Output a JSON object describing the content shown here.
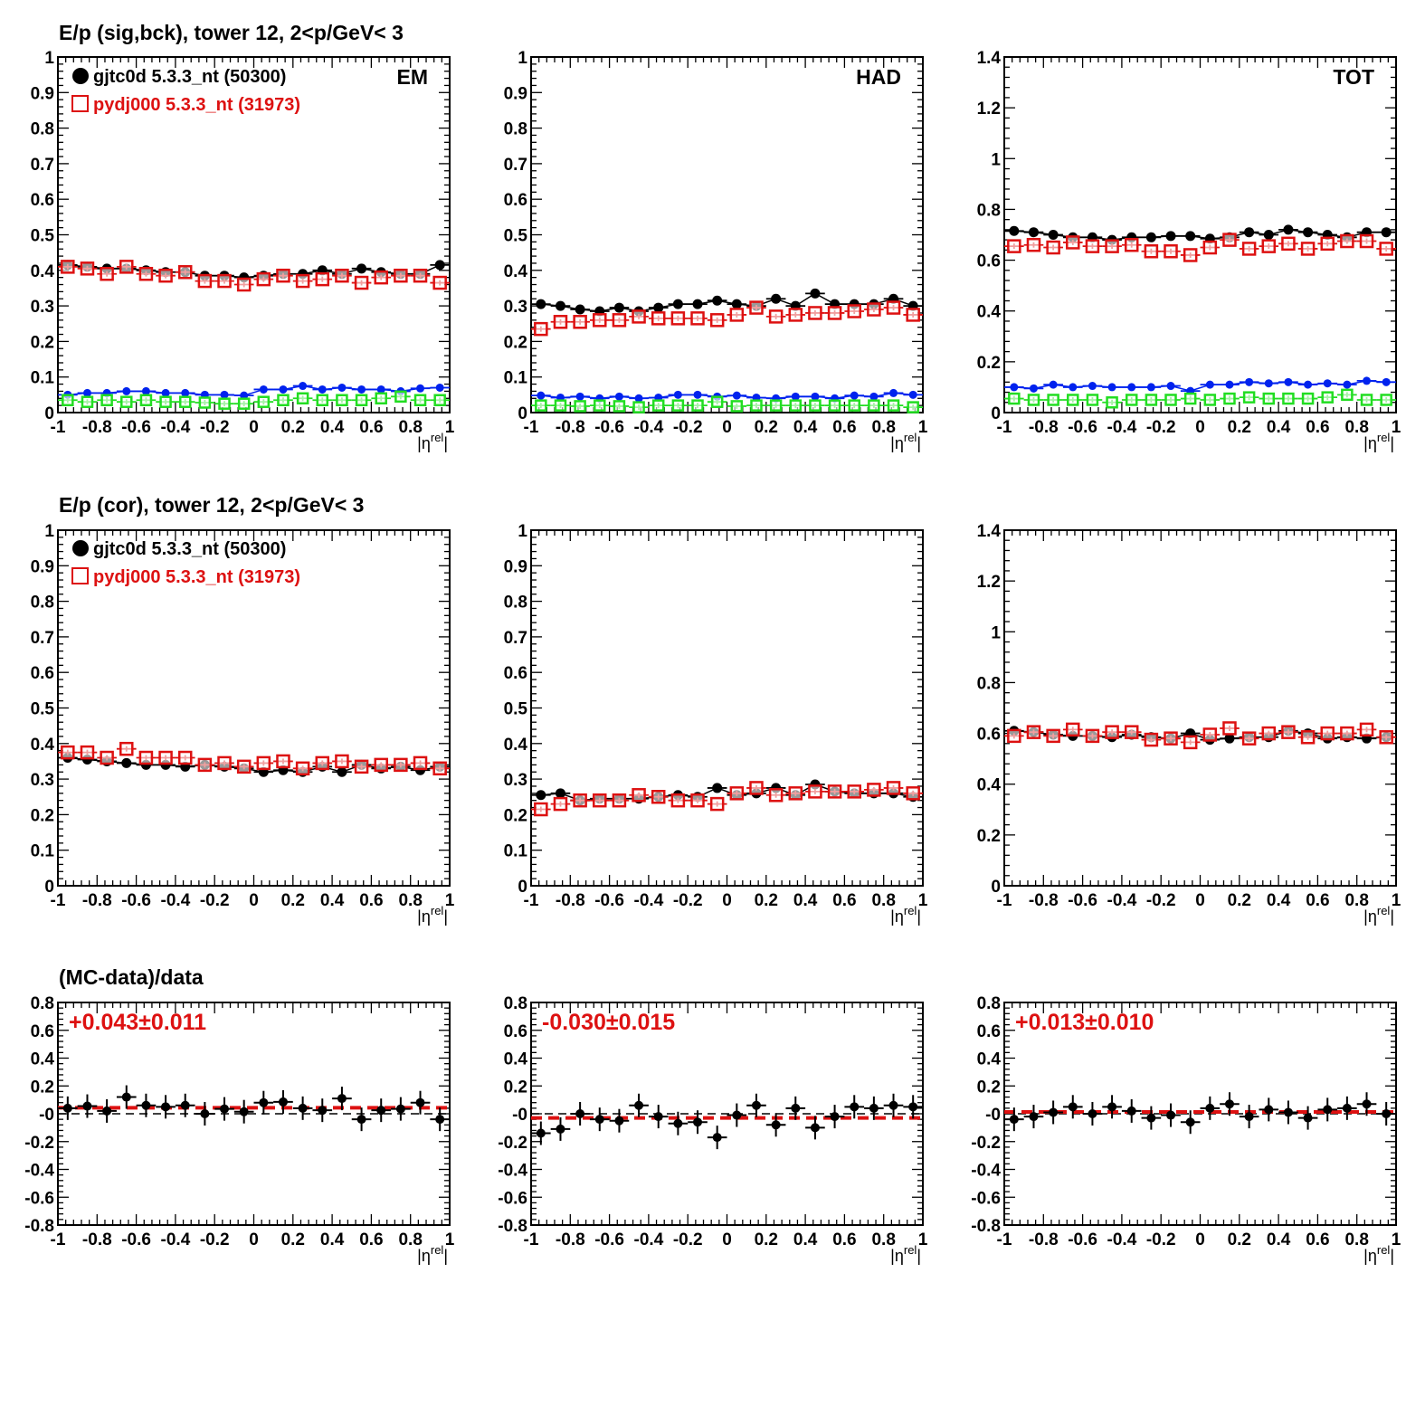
{
  "colors": {
    "data": "#000000",
    "mc": "#dd1111",
    "sig_bck_blue": "#0022ee",
    "sig_bck_green": "#22dd22",
    "fit_line": "#dd1111",
    "zero_line": "#000000"
  },
  "row_titles": [
    "E/p (sig,bck), tower 12,  2<p/GeV< 3",
    "E/p (cor), tower 12,  2<p/GeV< 3",
    "(MC-data)/data"
  ],
  "legend": {
    "data_label": "gjtc0d 5.3.3_nt (50300)",
    "mc_label": "pydj000 5.3.3_nt (31973)"
  },
  "chart_data": [
    {
      "type": "scatter",
      "row": 0,
      "col": 0,
      "panel_label": "EM",
      "xlabel": "|η^rel|",
      "xlim": [
        -1,
        1
      ],
      "ylim": [
        0,
        1
      ],
      "x_ticks": [
        "-1",
        "-0.8",
        "-0.6",
        "-0.4",
        "-0.2",
        "0",
        "0.2",
        "0.4",
        "0.6",
        "0.8",
        "1"
      ],
      "y_ticks": [
        "0",
        "0.1",
        "0.2",
        "0.3",
        "0.4",
        "0.5",
        "0.6",
        "0.7",
        "0.8",
        "0.9",
        "1"
      ],
      "x": [
        -0.95,
        -0.85,
        -0.75,
        -0.65,
        -0.55,
        -0.45,
        -0.35,
        -0.25,
        -0.15,
        -0.05,
        0.05,
        0.15,
        0.25,
        0.35,
        0.45,
        0.55,
        0.65,
        0.75,
        0.85,
        0.95
      ],
      "series": [
        {
          "name": "gjtc0d 5.3.3_nt (50300)",
          "values": [
            0.415,
            0.41,
            0.405,
            0.405,
            0.4,
            0.395,
            0.395,
            0.385,
            0.385,
            0.38,
            0.385,
            0.39,
            0.39,
            0.4,
            0.39,
            0.405,
            0.395,
            0.39,
            0.39,
            0.415
          ]
        },
        {
          "name": "pydj000 5.3.3_nt (31973)",
          "values": [
            0.41,
            0.405,
            0.39,
            0.41,
            0.39,
            0.385,
            0.395,
            0.37,
            0.37,
            0.36,
            0.375,
            0.385,
            0.37,
            0.375,
            0.385,
            0.365,
            0.38,
            0.385,
            0.385,
            0.365
          ]
        },
        {
          "name": "",
          "values": [
            0.05,
            0.055,
            0.055,
            0.06,
            0.06,
            0.055,
            0.055,
            0.05,
            0.05,
            0.048,
            0.065,
            0.065,
            0.075,
            0.065,
            0.07,
            0.065,
            0.065,
            0.06,
            0.068,
            0.07
          ]
        },
        {
          "name": "",
          "values": [
            0.035,
            0.03,
            0.035,
            0.03,
            0.035,
            0.03,
            0.03,
            0.028,
            0.025,
            0.025,
            0.03,
            0.035,
            0.04,
            0.035,
            0.035,
            0.035,
            0.04,
            0.045,
            0.035,
            0.035
          ]
        }
      ]
    },
    {
      "type": "scatter",
      "row": 0,
      "col": 1,
      "panel_label": "HAD",
      "xlabel": "|η^rel|",
      "xlim": [
        -1,
        1
      ],
      "ylim": [
        0,
        1
      ],
      "x_ticks": [
        "-1",
        "-0.8",
        "-0.6",
        "-0.4",
        "-0.2",
        "0",
        "0.2",
        "0.4",
        "0.6",
        "0.8",
        "1"
      ],
      "y_ticks": [
        "0",
        "0.1",
        "0.2",
        "0.3",
        "0.4",
        "0.5",
        "0.6",
        "0.7",
        "0.8",
        "0.9",
        "1"
      ],
      "x": [
        -0.95,
        -0.85,
        -0.75,
        -0.65,
        -0.55,
        -0.45,
        -0.35,
        -0.25,
        -0.15,
        -0.05,
        0.05,
        0.15,
        0.25,
        0.35,
        0.45,
        0.55,
        0.65,
        0.75,
        0.85,
        0.95
      ],
      "series": [
        {
          "name": "gjtc0d 5.3.3_nt (50300)",
          "values": [
            0.305,
            0.3,
            0.29,
            0.285,
            0.295,
            0.285,
            0.295,
            0.305,
            0.305,
            0.315,
            0.305,
            0.3,
            0.32,
            0.3,
            0.335,
            0.305,
            0.305,
            0.305,
            0.32,
            0.3
          ]
        },
        {
          "name": "pydj000 5.3.3_nt (31973)",
          "values": [
            0.235,
            0.255,
            0.255,
            0.26,
            0.26,
            0.27,
            0.265,
            0.265,
            0.265,
            0.26,
            0.275,
            0.295,
            0.27,
            0.275,
            0.28,
            0.28,
            0.285,
            0.29,
            0.295,
            0.275
          ]
        },
        {
          "name": "",
          "values": [
            0.048,
            0.042,
            0.045,
            0.04,
            0.045,
            0.04,
            0.042,
            0.05,
            0.05,
            0.045,
            0.048,
            0.042,
            0.04,
            0.045,
            0.045,
            0.04,
            0.048,
            0.045,
            0.055,
            0.05
          ]
        },
        {
          "name": "",
          "values": [
            0.02,
            0.02,
            0.018,
            0.02,
            0.018,
            0.015,
            0.02,
            0.02,
            0.02,
            0.03,
            0.018,
            0.02,
            0.02,
            0.02,
            0.02,
            0.02,
            0.02,
            0.02,
            0.02,
            0.015
          ]
        }
      ]
    },
    {
      "type": "scatter",
      "row": 0,
      "col": 2,
      "panel_label": "TOT",
      "xlabel": "|η^rel|",
      "xlim": [
        -1,
        1
      ],
      "ylim": [
        0,
        1.4
      ],
      "x_ticks": [
        "-1",
        "-0.8",
        "-0.6",
        "-0.4",
        "-0.2",
        "0",
        "0.2",
        "0.4",
        "0.6",
        "0.8",
        "1"
      ],
      "y_ticks": [
        "0",
        "0.2",
        "0.4",
        "0.6",
        "0.8",
        "1",
        "1.2",
        "1.4"
      ],
      "x": [
        -0.95,
        -0.85,
        -0.75,
        -0.65,
        -0.55,
        -0.45,
        -0.35,
        -0.25,
        -0.15,
        -0.05,
        0.05,
        0.15,
        0.25,
        0.35,
        0.45,
        0.55,
        0.65,
        0.75,
        0.85,
        0.95
      ],
      "series": [
        {
          "name": "gjtc0d 5.3.3_nt (50300)",
          "values": [
            0.715,
            0.71,
            0.7,
            0.69,
            0.69,
            0.68,
            0.69,
            0.69,
            0.695,
            0.695,
            0.685,
            0.69,
            0.71,
            0.7,
            0.72,
            0.71,
            0.7,
            0.69,
            0.71,
            0.71
          ]
        },
        {
          "name": "pydj000 5.3.3_nt (31973)",
          "values": [
            0.655,
            0.66,
            0.65,
            0.67,
            0.655,
            0.655,
            0.66,
            0.635,
            0.635,
            0.62,
            0.65,
            0.68,
            0.645,
            0.655,
            0.665,
            0.645,
            0.665,
            0.675,
            0.675,
            0.645
          ]
        },
        {
          "name": "",
          "values": [
            0.1,
            0.095,
            0.11,
            0.1,
            0.105,
            0.1,
            0.1,
            0.1,
            0.105,
            0.085,
            0.11,
            0.11,
            0.12,
            0.115,
            0.12,
            0.11,
            0.115,
            0.11,
            0.125,
            0.12
          ]
        },
        {
          "name": "",
          "values": [
            0.055,
            0.05,
            0.05,
            0.05,
            0.05,
            0.04,
            0.05,
            0.05,
            0.05,
            0.055,
            0.05,
            0.055,
            0.06,
            0.055,
            0.055,
            0.055,
            0.06,
            0.07,
            0.05,
            0.05
          ]
        }
      ]
    },
    {
      "type": "scatter",
      "row": 1,
      "col": 0,
      "panel_label": "",
      "xlabel": "|η^rel|",
      "xlim": [
        -1,
        1
      ],
      "ylim": [
        0,
        1
      ],
      "x_ticks": [
        "-1",
        "-0.8",
        "-0.6",
        "-0.4",
        "-0.2",
        "0",
        "0.2",
        "0.4",
        "0.6",
        "0.8",
        "1"
      ],
      "y_ticks": [
        "0",
        "0.1",
        "0.2",
        "0.3",
        "0.4",
        "0.5",
        "0.6",
        "0.7",
        "0.8",
        "0.9",
        "1"
      ],
      "x": [
        -0.95,
        -0.85,
        -0.75,
        -0.65,
        -0.55,
        -0.45,
        -0.35,
        -0.25,
        -0.15,
        -0.05,
        0.05,
        0.15,
        0.25,
        0.35,
        0.45,
        0.55,
        0.65,
        0.75,
        0.85,
        0.95
      ],
      "series": [
        {
          "name": "gjtc0d 5.3.3_nt (50300)",
          "values": [
            0.36,
            0.355,
            0.35,
            0.345,
            0.34,
            0.34,
            0.335,
            0.34,
            0.335,
            0.33,
            0.32,
            0.325,
            0.32,
            0.335,
            0.32,
            0.34,
            0.33,
            0.335,
            0.325,
            0.335
          ]
        },
        {
          "name": "pydj000 5.3.3_nt (31973)",
          "values": [
            0.375,
            0.375,
            0.36,
            0.385,
            0.36,
            0.36,
            0.36,
            0.34,
            0.345,
            0.335,
            0.345,
            0.35,
            0.33,
            0.345,
            0.35,
            0.335,
            0.34,
            0.34,
            0.345,
            0.33
          ]
        }
      ]
    },
    {
      "type": "scatter",
      "row": 1,
      "col": 1,
      "panel_label": "",
      "xlabel": "|η^rel|",
      "xlim": [
        -1,
        1
      ],
      "ylim": [
        0,
        1
      ],
      "x_ticks": [
        "-1",
        "-0.8",
        "-0.6",
        "-0.4",
        "-0.2",
        "0",
        "0.2",
        "0.4",
        "0.6",
        "0.8",
        "1"
      ],
      "y_ticks": [
        "0",
        "0.1",
        "0.2",
        "0.3",
        "0.4",
        "0.5",
        "0.6",
        "0.7",
        "0.8",
        "0.9",
        "1"
      ],
      "x": [
        -0.95,
        -0.85,
        -0.75,
        -0.65,
        -0.55,
        -0.45,
        -0.35,
        -0.25,
        -0.15,
        -0.05,
        0.05,
        0.15,
        0.25,
        0.35,
        0.45,
        0.55,
        0.65,
        0.75,
        0.85,
        0.95
      ],
      "series": [
        {
          "name": "gjtc0d 5.3.3_nt (50300)",
          "values": [
            0.255,
            0.26,
            0.24,
            0.245,
            0.245,
            0.245,
            0.25,
            0.255,
            0.25,
            0.275,
            0.255,
            0.26,
            0.275,
            0.255,
            0.285,
            0.265,
            0.26,
            0.26,
            0.26,
            0.25
          ]
        },
        {
          "name": "pydj000 5.3.3_nt (31973)",
          "values": [
            0.215,
            0.23,
            0.24,
            0.24,
            0.24,
            0.255,
            0.25,
            0.24,
            0.24,
            0.23,
            0.26,
            0.275,
            0.255,
            0.26,
            0.265,
            0.265,
            0.265,
            0.27,
            0.275,
            0.26
          ]
        }
      ]
    },
    {
      "type": "scatter",
      "row": 1,
      "col": 2,
      "panel_label": "",
      "xlabel": "|η^rel|",
      "xlim": [
        -1,
        1
      ],
      "ylim": [
        0,
        1.4
      ],
      "x_ticks": [
        "-1",
        "-0.8",
        "-0.6",
        "-0.4",
        "-0.2",
        "0",
        "0.2",
        "0.4",
        "0.6",
        "0.8",
        "1"
      ],
      "y_ticks": [
        "0",
        "0.2",
        "0.4",
        "0.6",
        "0.8",
        "1",
        "1.2",
        "1.4"
      ],
      "x": [
        -0.95,
        -0.85,
        -0.75,
        -0.65,
        -0.55,
        -0.45,
        -0.35,
        -0.25,
        -0.15,
        -0.05,
        0.05,
        0.15,
        0.25,
        0.35,
        0.45,
        0.55,
        0.65,
        0.75,
        0.85,
        0.95
      ],
      "series": [
        {
          "name": "gjtc0d 5.3.3_nt (50300)",
          "values": [
            0.61,
            0.605,
            0.595,
            0.59,
            0.59,
            0.585,
            0.595,
            0.585,
            0.58,
            0.6,
            0.575,
            0.58,
            0.585,
            0.585,
            0.61,
            0.6,
            0.58,
            0.585,
            0.58,
            0.585
          ]
        },
        {
          "name": "pydj000 5.3.3_nt (31973)",
          "values": [
            0.59,
            0.605,
            0.59,
            0.615,
            0.59,
            0.605,
            0.605,
            0.575,
            0.58,
            0.565,
            0.595,
            0.62,
            0.58,
            0.6,
            0.605,
            0.585,
            0.6,
            0.6,
            0.615,
            0.585
          ]
        }
      ]
    },
    {
      "type": "scatter",
      "row": 2,
      "col": 0,
      "panel_label": "",
      "fit_label": "+0.043±0.011",
      "fit_value": 0.043,
      "xlabel": "|η^rel|",
      "xlim": [
        -1,
        1
      ],
      "ylim": [
        -0.8,
        0.8
      ],
      "x_ticks": [
        "-1",
        "-0.8",
        "-0.6",
        "-0.4",
        "-0.2",
        "0",
        "0.2",
        "0.4",
        "0.6",
        "0.8",
        "1"
      ],
      "y_ticks": [
        "-0.8",
        "-0.6",
        "-0.4",
        "-0.2",
        "-0",
        "0.2",
        "0.4",
        "0.6",
        "0.8"
      ],
      "x": [
        -0.95,
        -0.85,
        -0.75,
        -0.65,
        -0.55,
        -0.45,
        -0.35,
        -0.25,
        -0.15,
        -0.05,
        0.05,
        0.15,
        0.25,
        0.35,
        0.45,
        0.55,
        0.65,
        0.75,
        0.85,
        0.95
      ],
      "series": [
        {
          "name": "(MC-data)/data",
          "values": [
            0.04,
            0.055,
            0.02,
            0.12,
            0.06,
            0.05,
            0.06,
            0.0,
            0.035,
            0.015,
            0.08,
            0.085,
            0.04,
            0.025,
            0.11,
            -0.04,
            0.025,
            0.035,
            0.08,
            -0.04
          ]
        }
      ]
    },
    {
      "type": "scatter",
      "row": 2,
      "col": 1,
      "panel_label": "",
      "fit_label": "-0.030±0.015",
      "fit_value": -0.03,
      "xlabel": "|η^rel|",
      "xlim": [
        -1,
        1
      ],
      "ylim": [
        -0.8,
        0.8
      ],
      "x_ticks": [
        "-1",
        "-0.8",
        "-0.6",
        "-0.4",
        "-0.2",
        "0",
        "0.2",
        "0.4",
        "0.6",
        "0.8",
        "1"
      ],
      "y_ticks": [
        "-0.8",
        "-0.6",
        "-0.4",
        "-0.2",
        "-0",
        "0.2",
        "0.4",
        "0.6",
        "0.8"
      ],
      "x": [
        -0.95,
        -0.85,
        -0.75,
        -0.65,
        -0.55,
        -0.45,
        -0.35,
        -0.25,
        -0.15,
        -0.05,
        0.05,
        0.15,
        0.25,
        0.35,
        0.45,
        0.55,
        0.65,
        0.75,
        0.85,
        0.95
      ],
      "series": [
        {
          "name": "(MC-data)/data",
          "values": [
            -0.14,
            -0.11,
            0.0,
            -0.04,
            -0.05,
            0.06,
            -0.02,
            -0.07,
            -0.06,
            -0.17,
            -0.01,
            0.06,
            -0.08,
            0.04,
            -0.1,
            -0.02,
            0.05,
            0.04,
            0.06,
            0.05
          ]
        }
      ]
    },
    {
      "type": "scatter",
      "row": 2,
      "col": 2,
      "panel_label": "",
      "fit_label": "+0.013±0.010",
      "fit_value": 0.013,
      "xlabel": "|η^rel|",
      "xlim": [
        -1,
        1
      ],
      "ylim": [
        -0.8,
        0.8
      ],
      "x_ticks": [
        "-1",
        "-0.8",
        "-0.6",
        "-0.4",
        "-0.2",
        "0",
        "0.2",
        "0.4",
        "0.6",
        "0.8",
        "1"
      ],
      "y_ticks": [
        "-0.8",
        "-0.6",
        "-0.4",
        "-0.2",
        "-0",
        "0.2",
        "0.4",
        "0.6",
        "0.8"
      ],
      "x": [
        -0.95,
        -0.85,
        -0.75,
        -0.65,
        -0.55,
        -0.45,
        -0.35,
        -0.25,
        -0.15,
        -0.05,
        0.05,
        0.15,
        0.25,
        0.35,
        0.45,
        0.55,
        0.65,
        0.75,
        0.85,
        0.95
      ],
      "series": [
        {
          "name": "(MC-data)/data",
          "values": [
            -0.04,
            -0.02,
            0.01,
            0.05,
            0.0,
            0.05,
            0.02,
            -0.03,
            -0.01,
            -0.06,
            0.04,
            0.07,
            -0.02,
            0.03,
            0.01,
            -0.03,
            0.03,
            0.04,
            0.07,
            0.0
          ]
        }
      ]
    }
  ]
}
